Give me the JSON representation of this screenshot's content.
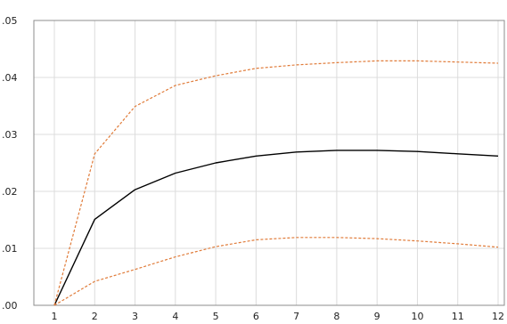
{
  "chart_data": {
    "type": "line",
    "title": "",
    "xlabel": "",
    "ylabel": "",
    "x": [
      1,
      2,
      3,
      4,
      5,
      6,
      7,
      8,
      9,
      10,
      11,
      12
    ],
    "xlim": [
      1,
      12
    ],
    "ylim": [
      0.0,
      0.05
    ],
    "y_ticks": [
      ".00",
      ".01",
      ".02",
      ".03",
      ".04",
      ".05"
    ],
    "y_tick_values": [
      0.0,
      0.01,
      0.02,
      0.03,
      0.04,
      0.05
    ],
    "x_ticks": [
      "1",
      "2",
      "3",
      "4",
      "5",
      "6",
      "7",
      "8",
      "9",
      "10",
      "11",
      "12"
    ],
    "grid": true,
    "legend": "none",
    "series": [
      {
        "style": "solid",
        "color": "#000000",
        "values": [
          0.0,
          0.0151,
          0.0203,
          0.0232,
          0.025,
          0.0262,
          0.0269,
          0.0272,
          0.0272,
          0.027,
          0.0266,
          0.0262
        ]
      },
      {
        "style": "dashed",
        "color": "#e07b39",
        "values": [
          0.0,
          0.0266,
          0.0349,
          0.0386,
          0.0403,
          0.0416,
          0.0422,
          0.0426,
          0.0429,
          0.0429,
          0.0427,
          0.0425
        ]
      },
      {
        "style": "dashed",
        "color": "#e07b39",
        "values": [
          0.0,
          0.0042,
          0.0063,
          0.0085,
          0.0103,
          0.0115,
          0.0119,
          0.0119,
          0.0117,
          0.0113,
          0.0108,
          0.0102
        ]
      }
    ]
  }
}
